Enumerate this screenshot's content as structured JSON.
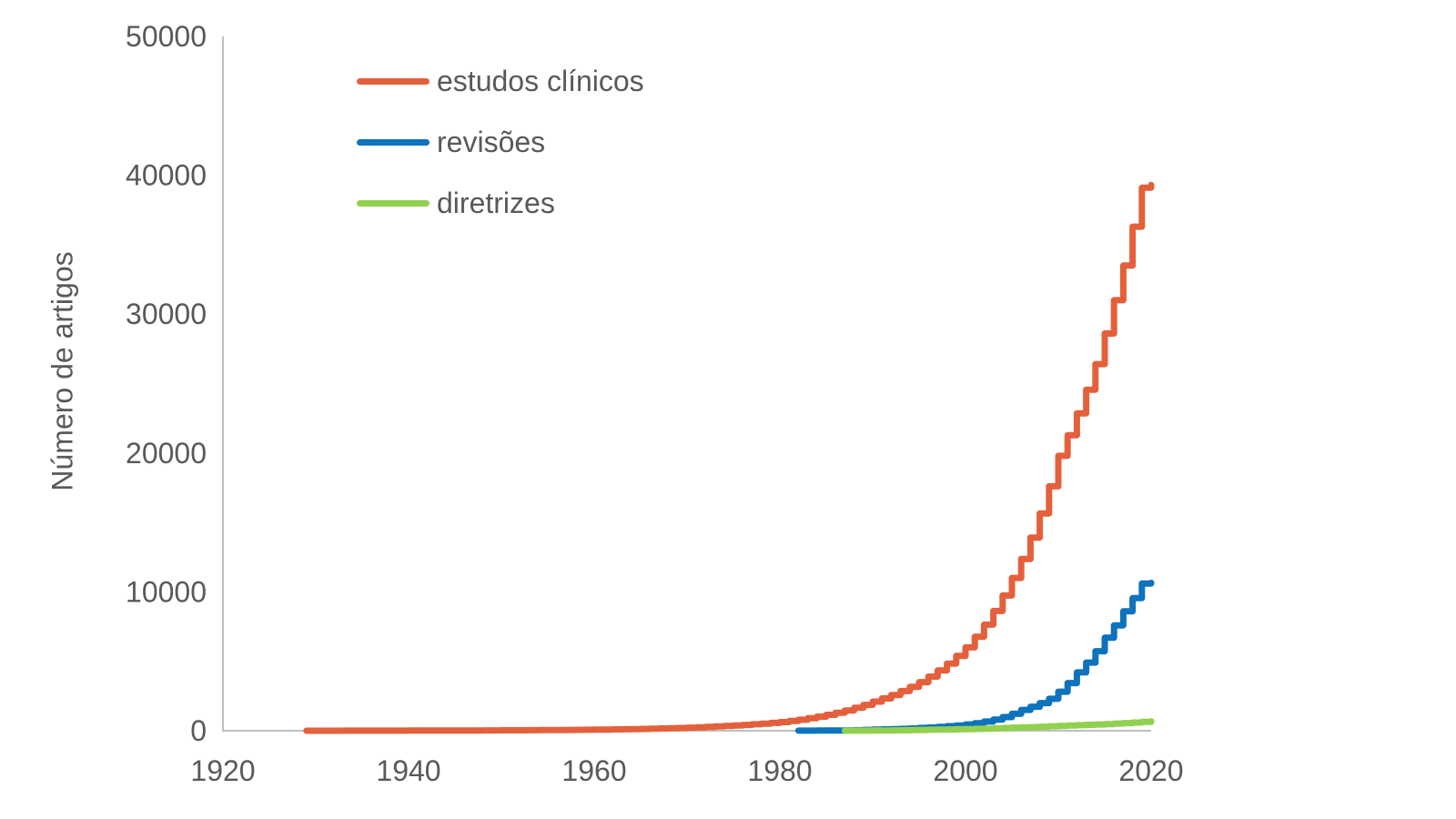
{
  "figure": {
    "background": "#FFFFFF",
    "axis_color": "#BFBFBF",
    "text_color": "#595959"
  },
  "chart_data": {
    "type": "line",
    "subtype": "step",
    "title": "",
    "xlabel": "",
    "ylabel": "Número de artigos",
    "xlim": [
      1920,
      2020
    ],
    "ylim": [
      0,
      50000
    ],
    "x_ticks": [
      1920,
      1940,
      1960,
      1980,
      2000,
      2020
    ],
    "y_ticks": [
      0,
      10000,
      20000,
      30000,
      40000,
      50000
    ],
    "grid": false,
    "legend_position": "top-left-inside",
    "series": [
      {
        "name": "estudos clínicos",
        "slug": "estudos-clinicos",
        "color": "#E4603C",
        "start_year": 1929,
        "end_year": 2020,
        "values": [
          2,
          2,
          3,
          3,
          4,
          4,
          5,
          6,
          7,
          8,
          9,
          10,
          11,
          12,
          14,
          15,
          17,
          19,
          21,
          24,
          27,
          30,
          33,
          36,
          40,
          44,
          49,
          54,
          59,
          66,
          72,
          80,
          88,
          98,
          108,
          120,
          132,
          146,
          162,
          179,
          198,
          220,
          245,
          273,
          305,
          340,
          380,
          419,
          462,
          510,
          562,
          620,
          702,
          795,
          900,
          1016,
          1150,
          1297,
          1463,
          1650,
          1862,
          2100,
          2326,
          2576,
          2854,
          3161,
          3500,
          3898,
          4341,
          4834,
          5384,
          6000,
          6772,
          7644,
          8627,
          9737,
          11000,
          12372,
          13915,
          15651,
          17603,
          19800,
          21275,
          22860,
          24563,
          26400,
          28607,
          31000,
          33500,
          36300,
          39100,
          39300
        ]
      },
      {
        "name": "revisões",
        "slug": "revisoes",
        "color": "#0E72BD",
        "start_year": 1982,
        "end_year": 2020,
        "values": [
          5,
          7,
          10,
          14,
          20,
          28,
          40,
          57,
          80,
          96,
          115,
          139,
          167,
          200,
          235,
          277,
          325,
          383,
          450,
          545,
          660,
          800,
          986,
          1216,
          1500,
          1730,
          1995,
          2300,
          2811,
          3435,
          4200,
          4905,
          5729,
          6700,
          7591,
          8600,
          9546,
          10600,
          10650
        ]
      },
      {
        "name": "diretrizes",
        "slug": "diretrizes",
        "color": "#92D050",
        "start_year": 1987,
        "end_year": 2020,
        "values": [
          5,
          7,
          9,
          13,
          17,
          23,
          32,
          44,
          60,
          69,
          79,
          91,
          104,
          120,
          135,
          153,
          172,
          195,
          220,
          241,
          265,
          291,
          319,
          350,
          373,
          397,
          423,
          451,
          480,
          515,
          552,
          592,
          634,
          680
        ]
      }
    ]
  }
}
